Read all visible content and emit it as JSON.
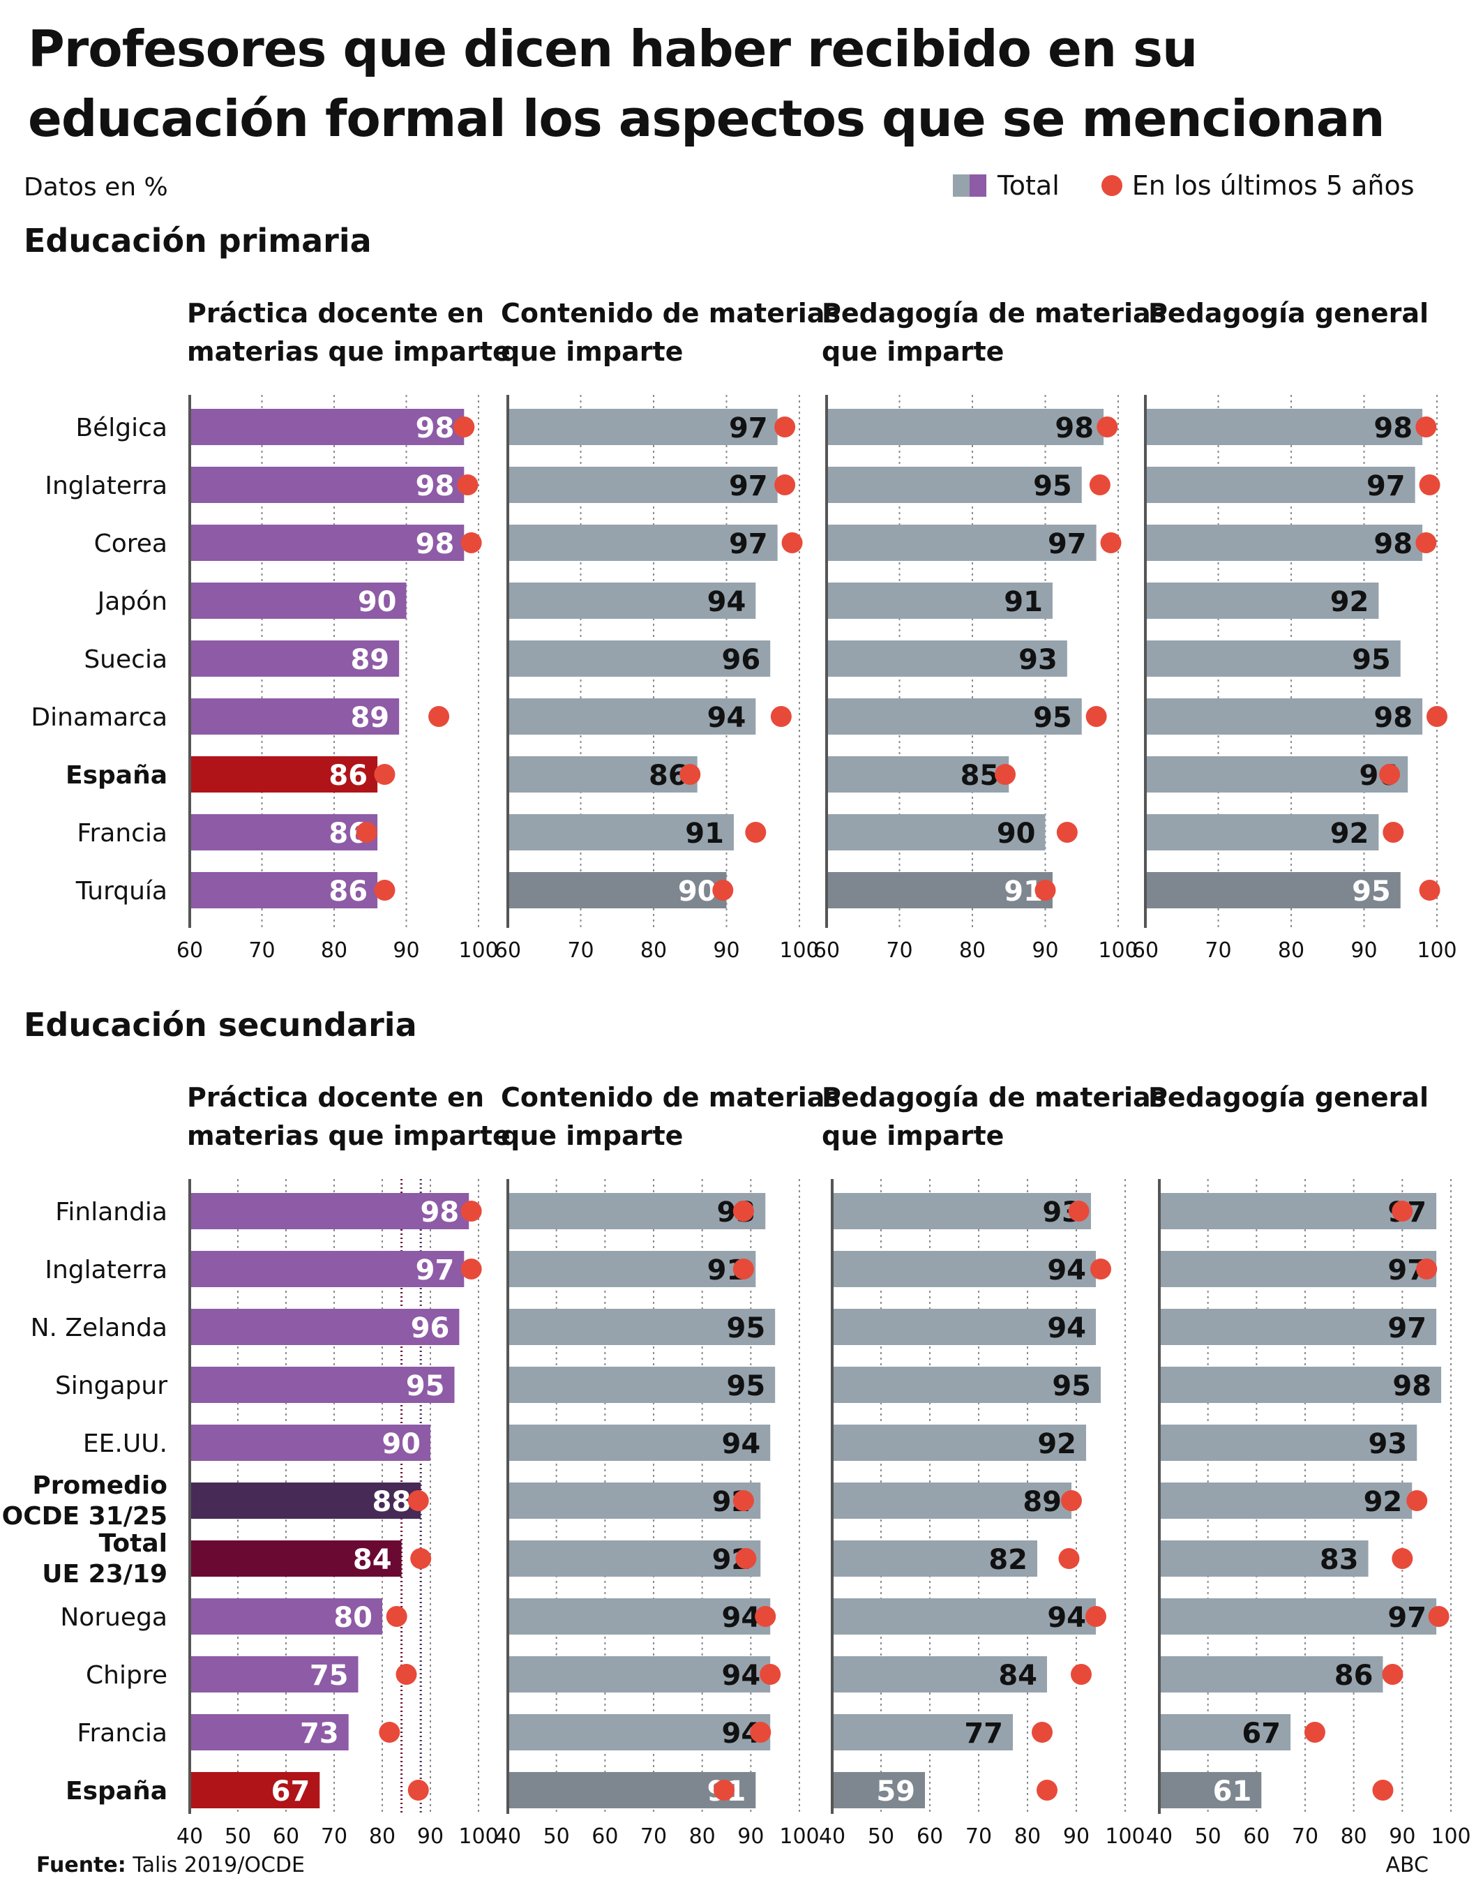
{
  "title": "Profesores que dicen haber recibido en su educación formal los aspectos que se mencionan",
  "units_note": "Datos en %",
  "legend": {
    "total": "Total",
    "recent": "En los últimos 5 años"
  },
  "source_label": "Fuente:",
  "source_text": "Talis 2019/OCDE",
  "credit": "ABC",
  "colors": {
    "purple": "#8e5ba6",
    "gray": "#96a3ad",
    "dark_gray": "#7e878f",
    "spain": "#b01418",
    "oecd": "#472a56",
    "eu": "#6a0a33",
    "dot": "#e84a3a"
  },
  "chart_data": [
    {
      "type": "bar",
      "title": "Educación primaria",
      "categories": [
        "Bélgica",
        "Inglaterra",
        "Corea",
        "Japón",
        "Suecia",
        "Dinamarca",
        "España",
        "Francia",
        "Turquía"
      ],
      "xlim": [
        60,
        100
      ],
      "xticks": [
        60,
        70,
        80,
        90,
        100
      ],
      "grid": true,
      "panels": [
        {
          "title": "Práctica docente en materias que imparte",
          "total": [
            98,
            98,
            98,
            90,
            89,
            89,
            86,
            86,
            86
          ],
          "recent": [
            98,
            98.5,
            99,
            null,
            null,
            94.5,
            87,
            84.5,
            87
          ]
        },
        {
          "title": "Contenido de materias que imparte",
          "total": [
            97,
            97,
            97,
            94,
            96,
            94,
            86,
            91,
            90
          ],
          "recent": [
            98,
            98,
            99,
            null,
            null,
            97.5,
            85,
            94,
            89.5
          ]
        },
        {
          "title": "Pedagogía de materias que imparte",
          "total": [
            98,
            95,
            97,
            91,
            93,
            95,
            85,
            90,
            91
          ],
          "recent": [
            98.5,
            97.5,
            99,
            null,
            null,
            97,
            84.5,
            93,
            90
          ]
        },
        {
          "title": "Pedagogía general",
          "total": [
            98,
            97,
            98,
            92,
            95,
            98,
            96,
            92,
            95
          ],
          "recent": [
            98.5,
            99,
            98.5,
            null,
            null,
            100,
            93.5,
            94,
            99
          ]
        }
      ]
    },
    {
      "type": "bar",
      "title": "Educación secundaria",
      "categories": [
        "Finlandia",
        "Inglaterra",
        "N. Zelanda",
        "Singapur",
        "EE.UU.",
        "Promedio\nOCDE 31/25",
        "Total\nUE 23/19",
        "Noruega",
        "Chipre",
        "Francia",
        "España"
      ],
      "xlim": [
        40,
        100
      ],
      "xticks": [
        40,
        50,
        60,
        70,
        80,
        90,
        100
      ],
      "grid": true,
      "panels": [
        {
          "title": "Práctica docente en materias que imparte",
          "total": [
            98,
            97,
            96,
            95,
            90,
            88,
            84,
            80,
            75,
            73,
            67
          ],
          "recent": [
            98.5,
            98.5,
            null,
            null,
            null,
            87.5,
            88,
            83,
            85,
            81.5,
            87.5
          ]
        },
        {
          "title": "Contenido de materias que imparte",
          "total": [
            93,
            91,
            95,
            95,
            94,
            92,
            92,
            94,
            94,
            94,
            91
          ],
          "recent": [
            88.5,
            88.5,
            null,
            null,
            null,
            88.5,
            89,
            93,
            94,
            92,
            84.5
          ]
        },
        {
          "title": "Pedagogía de materias que imparte",
          "total": [
            93,
            94,
            94,
            95,
            92,
            89,
            82,
            94,
            84,
            77,
            59
          ],
          "recent": [
            90.5,
            95,
            null,
            null,
            null,
            89,
            88.5,
            94,
            91,
            83,
            84
          ]
        },
        {
          "title": "Pedagogía general",
          "total": [
            97,
            97,
            97,
            98,
            93,
            92,
            83,
            97,
            86,
            67,
            61
          ],
          "recent": [
            90,
            95,
            null,
            null,
            null,
            93,
            90,
            97.5,
            88,
            72,
            86
          ]
        }
      ]
    }
  ]
}
